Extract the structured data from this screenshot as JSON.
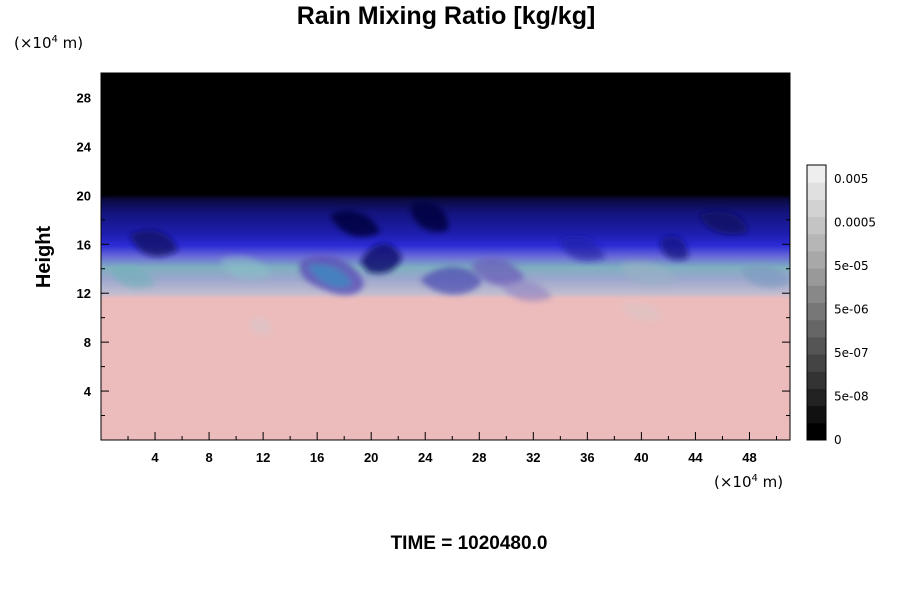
{
  "chart_data": {
    "type": "heatmap",
    "title": "Rain Mixing Ratio [kg/kg]",
    "ylabel": "Height",
    "xlabel": "",
    "x_unit": {
      "prefix": "(×10",
      "exp": "4",
      "suffix": " m)"
    },
    "y_unit": {
      "prefix": "(×10",
      "exp": "4",
      "suffix": " m)"
    },
    "xlim": [
      0,
      51
    ],
    "ylim": [
      0,
      30
    ],
    "x_ticks": [
      "4",
      "8",
      "12",
      "16",
      "20",
      "24",
      "28",
      "32",
      "36",
      "40",
      "44",
      "48"
    ],
    "y_ticks": [
      "4",
      "8",
      "12",
      "16",
      "20",
      "24",
      "28"
    ],
    "x_tick_values": [
      4,
      8,
      12,
      16,
      20,
      24,
      28,
      32,
      36,
      40,
      44,
      48
    ],
    "y_tick_values": [
      4,
      8,
      12,
      16,
      20,
      24,
      28
    ],
    "grid": false,
    "colorbar": {
      "tick_labels": [
        "0.005",
        "0.0005",
        "5e-05",
        "5e-06",
        "5e-07",
        "5e-08",
        "0"
      ],
      "levels": 16,
      "colors": [
        "#000000",
        "#111111",
        "#222222",
        "#333333",
        "#444444",
        "#555555",
        "#666666",
        "#777777",
        "#888888",
        "#999999",
        "#a8a8a8",
        "#b6b6b6",
        "#c4c4c4",
        "#d2d2d2",
        "#e0e0e0",
        "#eeeeee"
      ]
    },
    "regions": [
      {
        "name": "upper",
        "y_range": [
          19.5,
          30
        ],
        "color": "#000000"
      },
      {
        "name": "dark-blue band",
        "y_range": [
          16,
          19.5
        ],
        "color": "#12127a"
      },
      {
        "name": "blue band",
        "y_range": [
          14.5,
          16
        ],
        "color": "#2a2ad8"
      },
      {
        "name": "cyan/lavender mix",
        "y_range": [
          12,
          14.5
        ],
        "color": "#8fb6c8"
      },
      {
        "name": "lower",
        "y_range": [
          0,
          11.5
        ],
        "color": "#ecbcbc"
      }
    ]
  },
  "footer": {
    "time_text": "TIME = 1020480.0"
  }
}
